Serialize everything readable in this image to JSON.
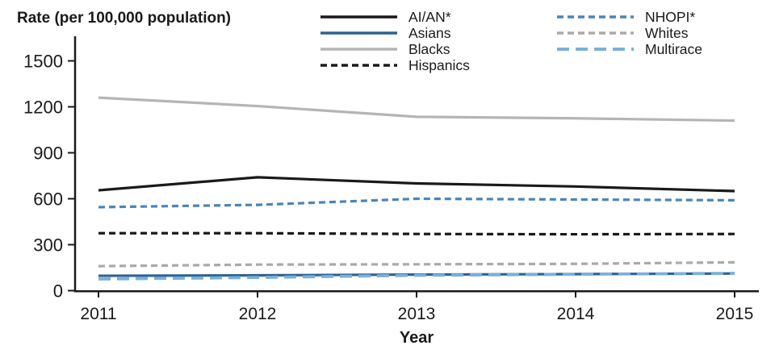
{
  "title": "Rate (per 100,000 population)",
  "x_axis_label": "Year",
  "chart_data": {
    "type": "line",
    "x": [
      2011,
      2012,
      2013,
      2014,
      2015
    ],
    "xlabel": "Year",
    "ylabel": "Rate (per 100,000 population)",
    "ylim": [
      0,
      1500
    ],
    "yticks": [
      0,
      300,
      600,
      900,
      1200,
      1500
    ],
    "grid": false,
    "legend_position": "top",
    "axis_color": "#1a1a1a",
    "series": [
      {
        "name": "AI/AN*",
        "color": "#1a1a1a",
        "line_style": "solid",
        "values": [
          655,
          740,
          700,
          680,
          650
        ]
      },
      {
        "name": "Asians",
        "color": "#2e6295",
        "line_style": "solid",
        "values": [
          97,
          100,
          105,
          108,
          112
        ]
      },
      {
        "name": "Blacks",
        "color": "#b5b5b5",
        "line_style": "solid",
        "values": [
          1260,
          1205,
          1135,
          1125,
          1110
        ]
      },
      {
        "name": "Hispanics",
        "color": "#1a1a1a",
        "line_style": "dashed",
        "values": [
          375,
          375,
          370,
          368,
          370
        ]
      },
      {
        "name": "NHOPI*",
        "color": "#4a84b8",
        "line_style": "dashed",
        "values": [
          545,
          560,
          600,
          595,
          590
        ]
      },
      {
        "name": "Whites",
        "color": "#aaaaaa",
        "line_style": "dashed",
        "values": [
          160,
          170,
          172,
          175,
          185
        ]
      },
      {
        "name": "Multirace",
        "color": "#7ab0dd",
        "line_style": "long-dash",
        "values": [
          76,
          86,
          100,
          107,
          113
        ]
      }
    ],
    "legend_columns": [
      [
        "AI/AN*",
        "Asians",
        "Blacks",
        "Hispanics"
      ],
      [
        "NHOPI*",
        "Whites",
        "Multirace"
      ]
    ]
  }
}
